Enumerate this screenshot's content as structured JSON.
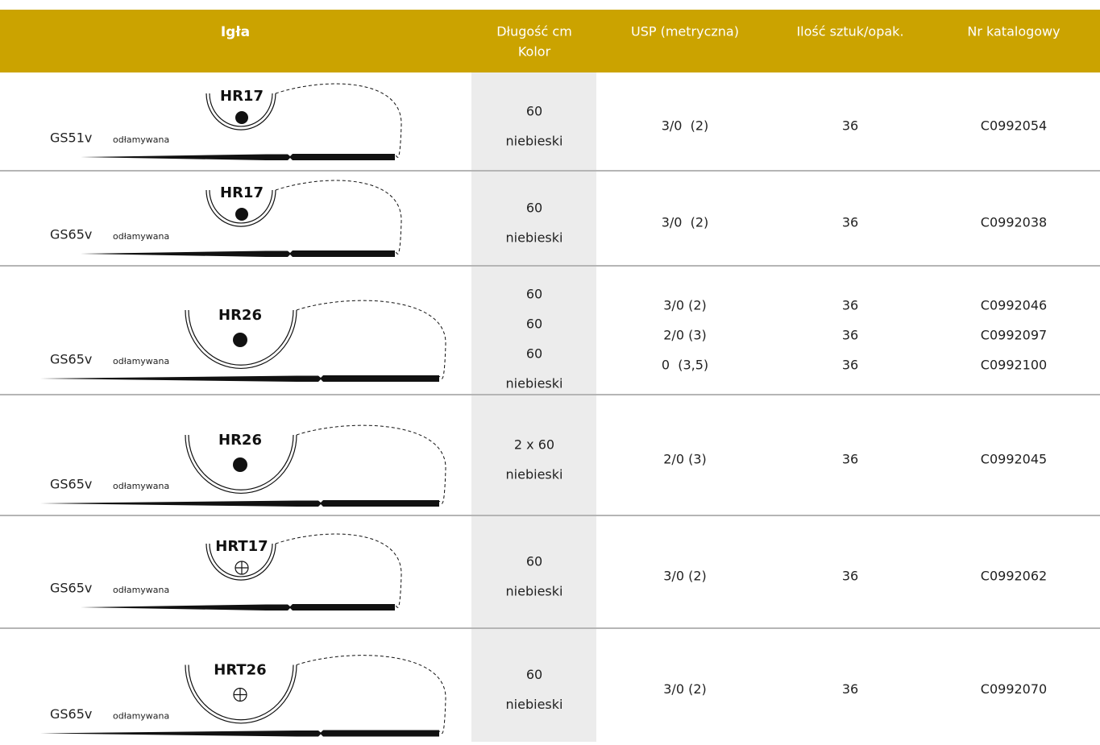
{
  "table": {
    "headers": [
      [
        "Igła"
      ],
      [
        "Długość cm",
        "Kolor"
      ],
      [
        "USP (metryczna)"
      ],
      [
        "Ilość sztuk/opak."
      ],
      [
        "Nr katalogowy"
      ]
    ],
    "rows": [
      {
        "needle": "HR17",
        "code": "GS51v",
        "note": "odłamywana",
        "large": false,
        "cutting": false,
        "lengths": [
          60
        ],
        "color": "niebieski",
        "usp": [
          "3/0  (2)"
        ],
        "qty": [
          36
        ],
        "catalog": [
          "C0992054"
        ]
      },
      {
        "needle": "HR17",
        "code": "GS65v",
        "note": "odłamywana",
        "large": false,
        "cutting": false,
        "lengths": [
          60
        ],
        "color": "niebieski",
        "usp": [
          "3/0  (2)"
        ],
        "qty": [
          36
        ],
        "catalog": [
          "C0992038"
        ]
      },
      {
        "needle": "HR26",
        "code": "GS65v",
        "note": "odłamywana",
        "large": true,
        "cutting": false,
        "lengths": [
          60,
          60,
          60
        ],
        "color": "niebieski",
        "usp": [
          "3/0 (2)",
          "2/0 (3)",
          "0  (3,5)"
        ],
        "qty": [
          36,
          36,
          36
        ],
        "catalog": [
          "C0992046",
          "C0992097",
          "C0992100"
        ]
      },
      {
        "needle": "HR26",
        "code": "GS65v",
        "note": "odłamywana",
        "large": true,
        "cutting": false,
        "lengths": [
          "2 x 60"
        ],
        "color": "niebieski",
        "usp": [
          "2/0 (3)"
        ],
        "qty": [
          36
        ],
        "catalog": [
          "C0992045"
        ]
      },
      {
        "needle": "HRT17",
        "code": "GS65v",
        "note": "odłamywana",
        "large": false,
        "cutting": true,
        "lengths": [
          60
        ],
        "color": "niebieski",
        "usp": [
          "3/0 (2)"
        ],
        "qty": [
          36
        ],
        "catalog": [
          "C0992062"
        ]
      },
      {
        "needle": "HRT26",
        "code": "GS65v",
        "note": "odłamywana",
        "large": true,
        "cutting": true,
        "lengths": [
          60
        ],
        "color": "niebieski",
        "usp": [
          "3/0 (2)"
        ],
        "qty": [
          36
        ],
        "catalog": [
          "C0992070"
        ]
      }
    ]
  }
}
